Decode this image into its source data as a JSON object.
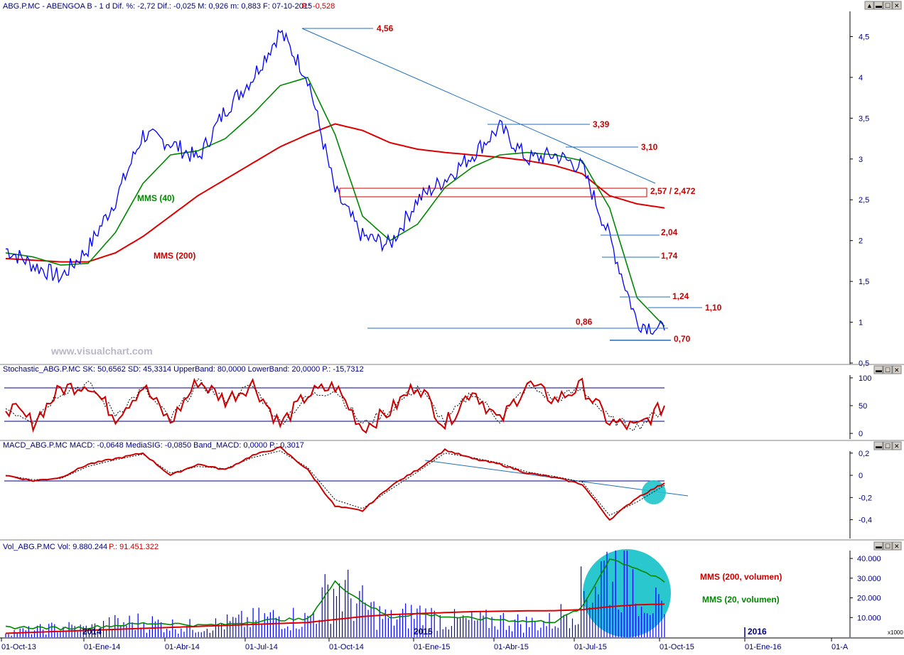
{
  "colors": {
    "price": "#0000ff",
    "mms40": "#008800",
    "mms200": "#dd0000",
    "label_red": "#cc0000",
    "trend": "#1f6fc0",
    "highlight": "#20c4cc",
    "grid_blue": "#000080",
    "black": "#000000"
  },
  "main_panel": {
    "header": {
      "prefix": "ABG.P.MC - ABENGOA B - 1 d Dif. %: -2,72 Dif.: -0,025 M: 0,926 m: 0,883 F: 07-10-2015",
      "suffix": "P.: -0,528"
    },
    "watermark": "www.visualchart.com",
    "y_ticks": [
      "4,5",
      "4",
      "3,5",
      "3",
      "2,5",
      "2",
      "1,5",
      "1",
      "0,5"
    ],
    "labels": {
      "ma40": "MMS (40)",
      "ma200": "MMS (200)",
      "l456": "4,56",
      "l339": "3,39",
      "l310": "3,10",
      "l257": "2,57 / 2,472",
      "l204": "2,04",
      "l174": "1,74",
      "l124": "1,24",
      "l110": "1,10",
      "l086": "0,86",
      "l070": "0,70"
    },
    "window_buttons": [
      "▲",
      "▬",
      "☐",
      "✕"
    ]
  },
  "stoch_panel": {
    "header": "Stochastic_ABG.P.MC SK: 50,6562 SD: 45,3314 UpperBand: 80,0000 LowerBand: 20,0000 P.: -15,7312",
    "y_ticks": [
      "100",
      "50",
      "0"
    ],
    "window_buttons": [
      "▬",
      "☐",
      "✕"
    ]
  },
  "macd_panel": {
    "header": "MACD_ABG.P.MC MACD: -0,0648 MediaSIG: -0,0850 Band_MACD: 0,0000 P.: 0,3017",
    "y_ticks": [
      "0,2",
      "0",
      "-0,2",
      "-0,4"
    ],
    "window_buttons": [
      "▬",
      "☐",
      "✕"
    ]
  },
  "vol_panel": {
    "header_prefix": "Vol_ABG.P.MC Vol: 9.880.244",
    "header_suffix": "P.: 91.451.322",
    "y_ticks": [
      "40.000",
      "30.000",
      "20.000",
      "10.000"
    ],
    "unit": "x1000",
    "year_2014": "2014",
    "year_2015": "2015",
    "year_2016": "2016",
    "ma200_label": "MMS (200, volumen)",
    "ma20_label": "MMS (20, volumen)",
    "window_buttons": [
      "▬",
      "☐",
      "✕"
    ]
  },
  "x_axis": {
    "labels": [
      "01-Oct-13",
      "01-Ene-14",
      "01-Abr-14",
      "01-Jul-14",
      "01-Oct-14",
      "01-Ene-15",
      "01-Abr-15",
      "01-Jul-15",
      "01-Oct-15",
      "01-Ene-16",
      "01-A"
    ]
  },
  "chart_data": [
    {
      "type": "line",
      "title": "ABG.P.MC - ABENGOA B - 1 d",
      "x": [
        "2013-10-01",
        "2013-11-01",
        "2013-12-01",
        "2014-01-01",
        "2014-02-01",
        "2014-03-01",
        "2014-04-01",
        "2014-05-01",
        "2014-06-01",
        "2014-07-01",
        "2014-08-01",
        "2014-09-01",
        "2014-10-01",
        "2014-11-01",
        "2014-12-01",
        "2015-01-01",
        "2015-02-01",
        "2015-03-01",
        "2015-04-01",
        "2015-05-01",
        "2015-06-01",
        "2015-07-01",
        "2015-08-01",
        "2015-09-01",
        "2015-10-07"
      ],
      "series": [
        {
          "name": "ABG.P.MC",
          "values": [
            1.9,
            1.7,
            1.55,
            1.9,
            2.5,
            3.3,
            3.2,
            3.0,
            3.6,
            4.0,
            4.56,
            4.0,
            2.6,
            2.05,
            1.95,
            2.5,
            2.75,
            3.05,
            3.39,
            3.0,
            3.05,
            2.9,
            2.04,
            1.0,
            0.9
          ]
        },
        {
          "name": "MMS (40)",
          "values": [
            1.85,
            1.8,
            1.7,
            1.72,
            2.1,
            2.7,
            3.05,
            3.1,
            3.25,
            3.55,
            3.9,
            4.0,
            3.3,
            2.3,
            2.0,
            2.2,
            2.65,
            2.9,
            3.05,
            3.08,
            3.05,
            2.98,
            2.4,
            1.3,
            0.95
          ]
        },
        {
          "name": "MMS (200)",
          "values": [
            1.78,
            1.76,
            1.74,
            1.74,
            1.85,
            2.05,
            2.3,
            2.55,
            2.75,
            2.95,
            3.15,
            3.3,
            3.43,
            3.35,
            3.2,
            3.12,
            3.08,
            3.05,
            3.02,
            2.98,
            2.92,
            2.82,
            2.55,
            2.45,
            2.4
          ]
        }
      ],
      "annotations": [
        "4,56",
        "3,39",
        "3,10",
        "2,57 / 2,472",
        "2,04",
        "1,74",
        "1,24",
        "1,10",
        "0,86",
        "0,70"
      ],
      "ylim": [
        0.5,
        4.6
      ]
    },
    {
      "type": "line",
      "title": "Stochastic_ABG.P.MC",
      "series": [
        {
          "name": "SK",
          "values": [
            50,
            20,
            80,
            90,
            30,
            85,
            20,
            95,
            60,
            90,
            15,
            70,
            85,
            10,
            40,
            90,
            15,
            80,
            20,
            90,
            60,
            85,
            20,
            10,
            50
          ]
        },
        {
          "name": "SD",
          "values": [
            45,
            25,
            75,
            88,
            35,
            80,
            25,
            90,
            62,
            85,
            20,
            65,
            80,
            15,
            42,
            85,
            20,
            75,
            25,
            85,
            62,
            80,
            25,
            12,
            45
          ]
        }
      ],
      "bands": [
        80,
        20
      ],
      "ylim": [
        -5,
        105
      ]
    },
    {
      "type": "line",
      "title": "MACD_ABG.P.MC",
      "series": [
        {
          "name": "MACD",
          "values": [
            0.0,
            -0.05,
            -0.02,
            0.1,
            0.15,
            0.2,
            0.0,
            0.1,
            0.05,
            0.18,
            0.25,
            0.05,
            -0.28,
            -0.32,
            -0.1,
            0.05,
            0.23,
            0.15,
            0.1,
            0.02,
            -0.02,
            -0.08,
            -0.4,
            -0.2,
            -0.07
          ]
        },
        {
          "name": "MediaSIG",
          "values": [
            0.0,
            -0.04,
            -0.03,
            0.08,
            0.14,
            0.19,
            0.02,
            0.08,
            0.06,
            0.16,
            0.22,
            0.07,
            -0.22,
            -0.3,
            -0.13,
            0.03,
            0.2,
            0.16,
            0.11,
            0.03,
            -0.01,
            -0.06,
            -0.36,
            -0.24,
            -0.09
          ]
        }
      ],
      "ylim": [
        -0.55,
        0.25
      ]
    },
    {
      "type": "bar",
      "title": "Vol_ABG.P.MC",
      "series": [
        {
          "name": "Vol",
          "values": [
            3000,
            4000,
            6000,
            5000,
            8000,
            9000,
            7000,
            6000,
            8000,
            10000,
            12000,
            10000,
            30000,
            18000,
            10000,
            14000,
            10000,
            9000,
            10000,
            8000,
            9000,
            25000,
            42000,
            35000,
            9880
          ]
        },
        {
          "name": "MMS (20, volumen)",
          "values": [
            5000,
            5000,
            4500,
            5000,
            6000,
            7000,
            7000,
            6000,
            6500,
            8000,
            9000,
            9000,
            28000,
            18000,
            10000,
            12000,
            10500,
            9500,
            9000,
            8000,
            8000,
            15000,
            40000,
            35000,
            28000
          ]
        },
        {
          "name": "MMS (200, volumen)",
          "values": [
            2000,
            2500,
            3000,
            3500,
            4000,
            4500,
            5000,
            5500,
            6000,
            6500,
            7000,
            7500,
            9000,
            10500,
            11500,
            12000,
            12500,
            13000,
            13200,
            13400,
            13500,
            14000,
            15500,
            16500,
            16800
          ]
        }
      ],
      "unit": "x1000",
      "ylim": [
        0,
        44000
      ]
    }
  ]
}
